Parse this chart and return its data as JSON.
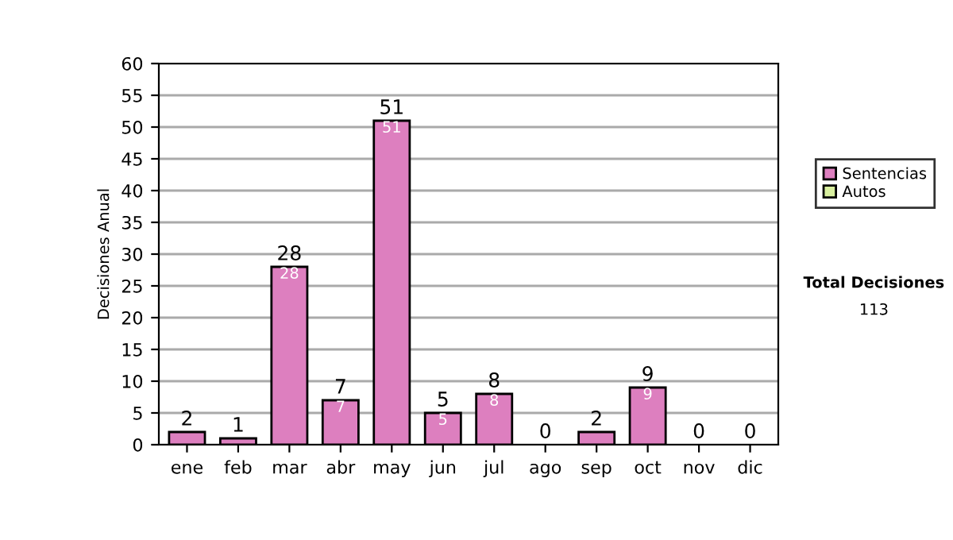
{
  "chart_data": {
    "type": "bar",
    "stacked": true,
    "ylabel": "Decisiones Anual",
    "categories": [
      "ene",
      "feb",
      "mar",
      "abr",
      "may",
      "jun",
      "jul",
      "ago",
      "sep",
      "oct",
      "nov",
      "dic"
    ],
    "series": [
      {
        "name": "Sentencias",
        "color": "#dd7fbf",
        "values": [
          2,
          1,
          28,
          7,
          51,
          5,
          8,
          0,
          2,
          9,
          0,
          0
        ],
        "value_labels": [
          null,
          null,
          "28",
          "7",
          "51",
          "5",
          "8",
          null,
          null,
          "9",
          null,
          null
        ]
      },
      {
        "name": "Autos",
        "color": "#d9f0a0",
        "values": [
          0,
          0,
          0,
          0,
          0,
          0,
          0,
          0,
          0,
          0,
          0,
          0
        ]
      }
    ],
    "totals": [
      "2",
      "1",
      "28",
      "7",
      "51",
      "5",
      "8",
      "0",
      "2",
      "9",
      "0",
      "0"
    ],
    "ylim": [
      0,
      60
    ],
    "yticks": [
      0,
      5,
      10,
      15,
      20,
      25,
      30,
      35,
      40,
      45,
      50,
      55,
      60
    ],
    "grid": "y",
    "legend": "right",
    "annotations": [
      "Total Decisiones",
      "113"
    ]
  }
}
